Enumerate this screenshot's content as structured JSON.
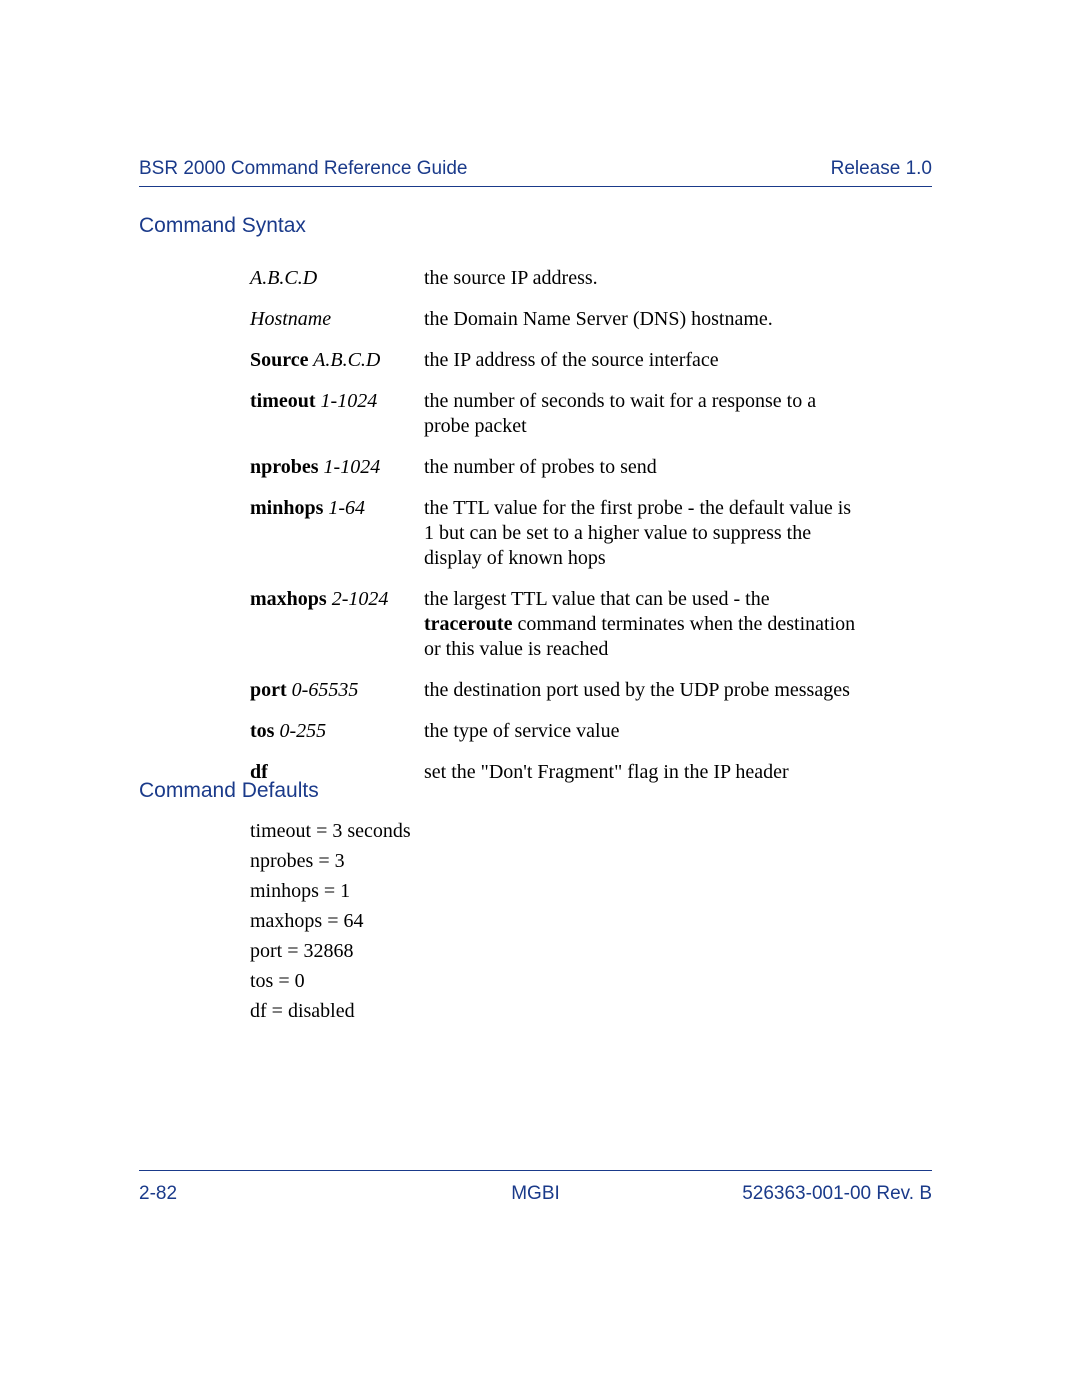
{
  "header": {
    "left": "BSR 2000 Command Reference Guide",
    "right": "Release 1.0"
  },
  "sections": {
    "syntax_title": "Command Syntax",
    "defaults_title": "Command Defaults"
  },
  "params": [
    {
      "key_bold": "",
      "key_italic": "A.B.C.D",
      "desc_pre": "the source IP address.",
      "desc_bold": "",
      "desc_post": ""
    },
    {
      "key_bold": "",
      "key_italic": "Hostname",
      "desc_pre": "the Domain Name Server (DNS) hostname.",
      "desc_bold": "",
      "desc_post": ""
    },
    {
      "key_bold": "Source",
      "key_italic": " A.B.C.D",
      "desc_pre": "the IP address of the source interface",
      "desc_bold": "",
      "desc_post": ""
    },
    {
      "key_bold": "timeout",
      "key_italic": " 1-1024",
      "desc_pre": "the number of seconds to wait for a response to a probe packet",
      "desc_bold": "",
      "desc_post": ""
    },
    {
      "key_bold": "nprobes",
      "key_italic": " 1-1024",
      "desc_pre": "the number of probes to send",
      "desc_bold": "",
      "desc_post": ""
    },
    {
      "key_bold": "minhops",
      "key_italic": " 1-64",
      "desc_pre": "the TTL value for the first probe - the default value is 1 but can be set to a higher value to suppress the display of known hops",
      "desc_bold": "",
      "desc_post": ""
    },
    {
      "key_bold": "maxhops",
      "key_italic": " 2-1024",
      "desc_pre": "the largest TTL value that can be used - the ",
      "desc_bold": "traceroute",
      "desc_post": " command terminates when the destination or this value is reached"
    },
    {
      "key_bold": "port",
      "key_italic": " 0-65535",
      "desc_pre": "the destination port used by the UDP probe messages",
      "desc_bold": "",
      "desc_post": ""
    },
    {
      "key_bold": "tos",
      "key_italic": " 0-255",
      "desc_pre": "the type of service value",
      "desc_bold": "",
      "desc_post": ""
    },
    {
      "key_bold": "df",
      "key_italic": "",
      "desc_pre": "set the \"Don't Fragment\" flag in the IP header",
      "desc_bold": "",
      "desc_post": ""
    }
  ],
  "defaults": [
    "timeout = 3 seconds",
    "nprobes = 3",
    "minhops = 1",
    "maxhops = 64",
    "port = 32868",
    "tos = 0",
    "df = disabled"
  ],
  "footer": {
    "left": "2-82",
    "center": "MGBI",
    "right": "526363-001-00 Rev. B"
  },
  "colors": {
    "heading": "#1a3a8a",
    "text": "#000000",
    "background": "#ffffff"
  },
  "fonts": {
    "heading_family": "Arial",
    "body_family": "Times New Roman",
    "heading_size_pt": 16,
    "body_size_pt": 15
  }
}
